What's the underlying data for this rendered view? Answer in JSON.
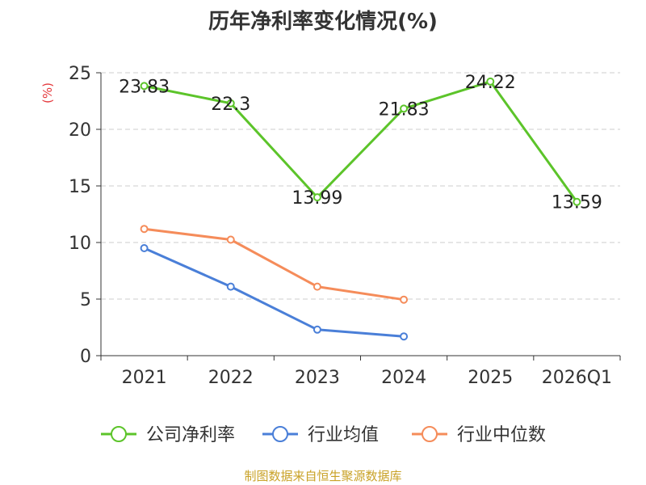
{
  "chart_data": {
    "type": "line",
    "title": "历年净利率变化情况(%)",
    "unit_label": "(%)",
    "categories": [
      "2021",
      "2022",
      "2023",
      "2024",
      "2025",
      "2026Q1"
    ],
    "ylim": [
      0,
      25
    ],
    "yticks": [
      0,
      5,
      10,
      15,
      20,
      25
    ],
    "grid": true,
    "legend_position": "bottom",
    "series": [
      {
        "name": "公司净利率",
        "color": "#5cc42a",
        "labeled": true,
        "values": [
          23.83,
          22.3,
          13.99,
          21.83,
          24.22,
          13.59
        ],
        "labels": [
          "23.83",
          "22.3",
          "13.99",
          "21.83",
          "24.22",
          "13.59"
        ]
      },
      {
        "name": "行业均值",
        "color": "#4a7fd8",
        "labeled": false,
        "values": [
          9.5,
          6.1,
          2.3,
          1.7,
          null,
          null
        ]
      },
      {
        "name": "行业中位数",
        "color": "#f58c5a",
        "labeled": false,
        "values": [
          11.2,
          10.25,
          6.1,
          4.95,
          null,
          null
        ]
      }
    ]
  },
  "footer": "制图数据来自恒生聚源数据库"
}
